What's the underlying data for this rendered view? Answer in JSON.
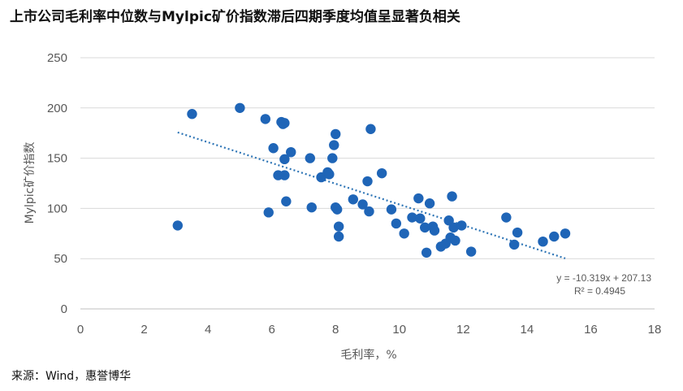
{
  "chart_data": {
    "type": "scatter",
    "title": "上市公司毛利率中位数与Mylpic矿价指数滞后四期季度均值呈显著负相关",
    "xlabel": "毛利率，%",
    "ylabel": "Mylpic矿价指数",
    "xlim": [
      0,
      18
    ],
    "ylim": [
      0,
      250
    ],
    "x_ticks": [
      "0",
      "2",
      "4",
      "6",
      "8",
      "10",
      "12",
      "14",
      "16",
      "18"
    ],
    "y_ticks": [
      "0",
      "50",
      "100",
      "150",
      "200",
      "250"
    ],
    "grid": "horizontal",
    "legend": "none",
    "marker_color": "#1f65b7",
    "trendline": {
      "type": "linear",
      "slope": -10.319,
      "intercept": 207.13,
      "x_range": [
        3.05,
        15.2
      ],
      "equation": "y = -10.319x + 207.13",
      "r_squared": "R² = 0.4945",
      "color": "#2e75b6"
    },
    "points": [
      {
        "x": 3.05,
        "y": 83
      },
      {
        "x": 3.5,
        "y": 194
      },
      {
        "x": 5.0,
        "y": 200
      },
      {
        "x": 5.8,
        "y": 189
      },
      {
        "x": 5.9,
        "y": 96
      },
      {
        "x": 6.05,
        "y": 160
      },
      {
        "x": 6.2,
        "y": 133
      },
      {
        "x": 6.3,
        "y": 186
      },
      {
        "x": 6.35,
        "y": 184
      },
      {
        "x": 6.4,
        "y": 185
      },
      {
        "x": 6.4,
        "y": 133
      },
      {
        "x": 6.4,
        "y": 149
      },
      {
        "x": 6.45,
        "y": 107
      },
      {
        "x": 6.6,
        "y": 156
      },
      {
        "x": 7.2,
        "y": 150
      },
      {
        "x": 7.25,
        "y": 101
      },
      {
        "x": 7.55,
        "y": 131
      },
      {
        "x": 7.75,
        "y": 136
      },
      {
        "x": 7.8,
        "y": 134
      },
      {
        "x": 7.9,
        "y": 150
      },
      {
        "x": 7.95,
        "y": 163
      },
      {
        "x": 8.0,
        "y": 174
      },
      {
        "x": 8.0,
        "y": 101
      },
      {
        "x": 8.05,
        "y": 99
      },
      {
        "x": 8.1,
        "y": 82
      },
      {
        "x": 8.1,
        "y": 72
      },
      {
        "x": 8.55,
        "y": 109
      },
      {
        "x": 8.85,
        "y": 104
      },
      {
        "x": 9.0,
        "y": 127
      },
      {
        "x": 9.05,
        "y": 97
      },
      {
        "x": 9.1,
        "y": 179
      },
      {
        "x": 9.45,
        "y": 135
      },
      {
        "x": 9.75,
        "y": 99
      },
      {
        "x": 9.9,
        "y": 85
      },
      {
        "x": 10.15,
        "y": 75
      },
      {
        "x": 10.4,
        "y": 91
      },
      {
        "x": 10.6,
        "y": 110
      },
      {
        "x": 10.65,
        "y": 90
      },
      {
        "x": 10.8,
        "y": 81
      },
      {
        "x": 10.85,
        "y": 56
      },
      {
        "x": 10.95,
        "y": 105
      },
      {
        "x": 11.05,
        "y": 82
      },
      {
        "x": 11.1,
        "y": 78
      },
      {
        "x": 11.3,
        "y": 62
      },
      {
        "x": 11.45,
        "y": 65
      },
      {
        "x": 11.55,
        "y": 88
      },
      {
        "x": 11.6,
        "y": 71
      },
      {
        "x": 11.65,
        "y": 112
      },
      {
        "x": 11.7,
        "y": 81
      },
      {
        "x": 11.75,
        "y": 68
      },
      {
        "x": 11.95,
        "y": 83
      },
      {
        "x": 12.25,
        "y": 57
      },
      {
        "x": 13.35,
        "y": 91
      },
      {
        "x": 13.6,
        "y": 64
      },
      {
        "x": 13.7,
        "y": 76
      },
      {
        "x": 14.5,
        "y": 67
      },
      {
        "x": 14.85,
        "y": 72
      },
      {
        "x": 15.2,
        "y": 75
      }
    ]
  },
  "source": "来源：Wind，惠誉博华"
}
